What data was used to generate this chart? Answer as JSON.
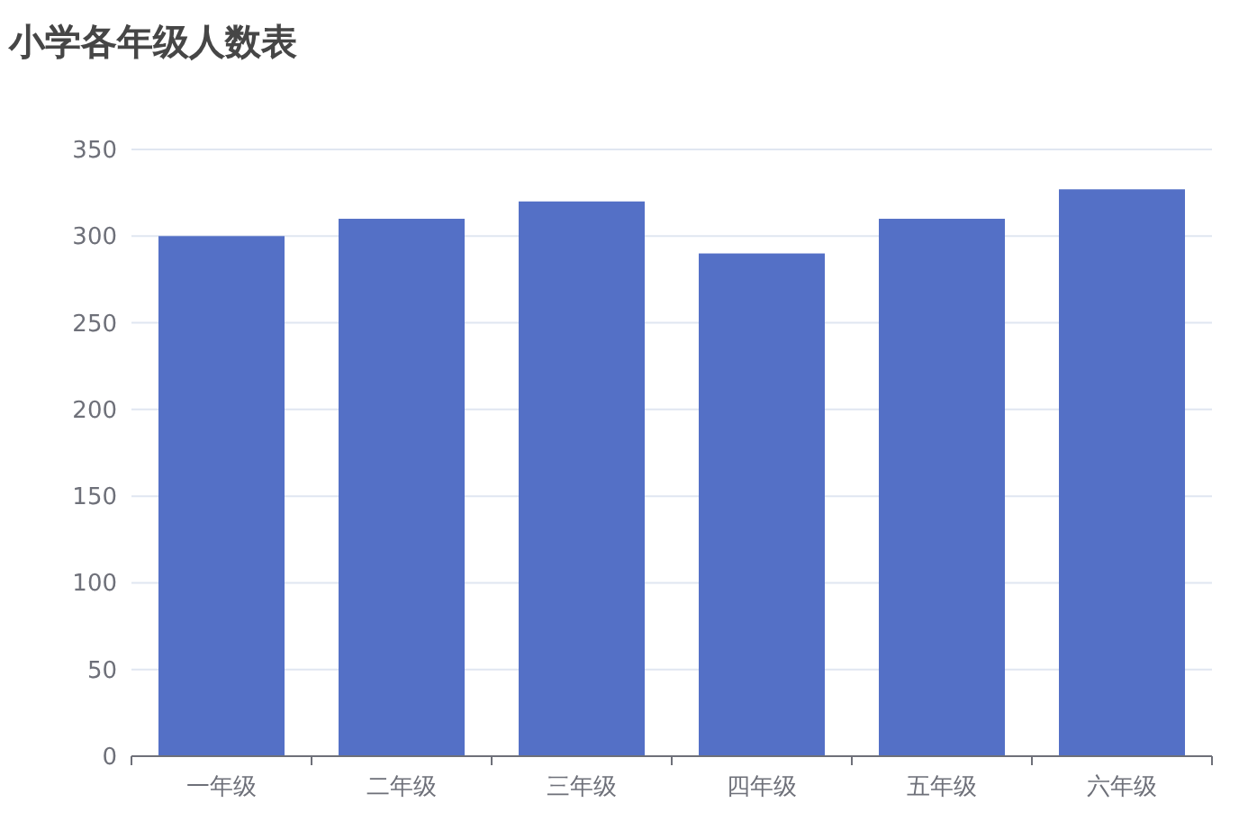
{
  "chart_data": {
    "type": "bar",
    "title": "小学各年级人数表",
    "categories": [
      "一年级",
      "二年级",
      "三年级",
      "四年级",
      "五年级",
      "六年级"
    ],
    "values": [
      300,
      310,
      320,
      290,
      310,
      327
    ],
    "color": "#5470c6",
    "ylim": [
      0,
      350
    ],
    "yticks": [
      0,
      50,
      100,
      150,
      200,
      250,
      300,
      350
    ],
    "grid": "y"
  }
}
